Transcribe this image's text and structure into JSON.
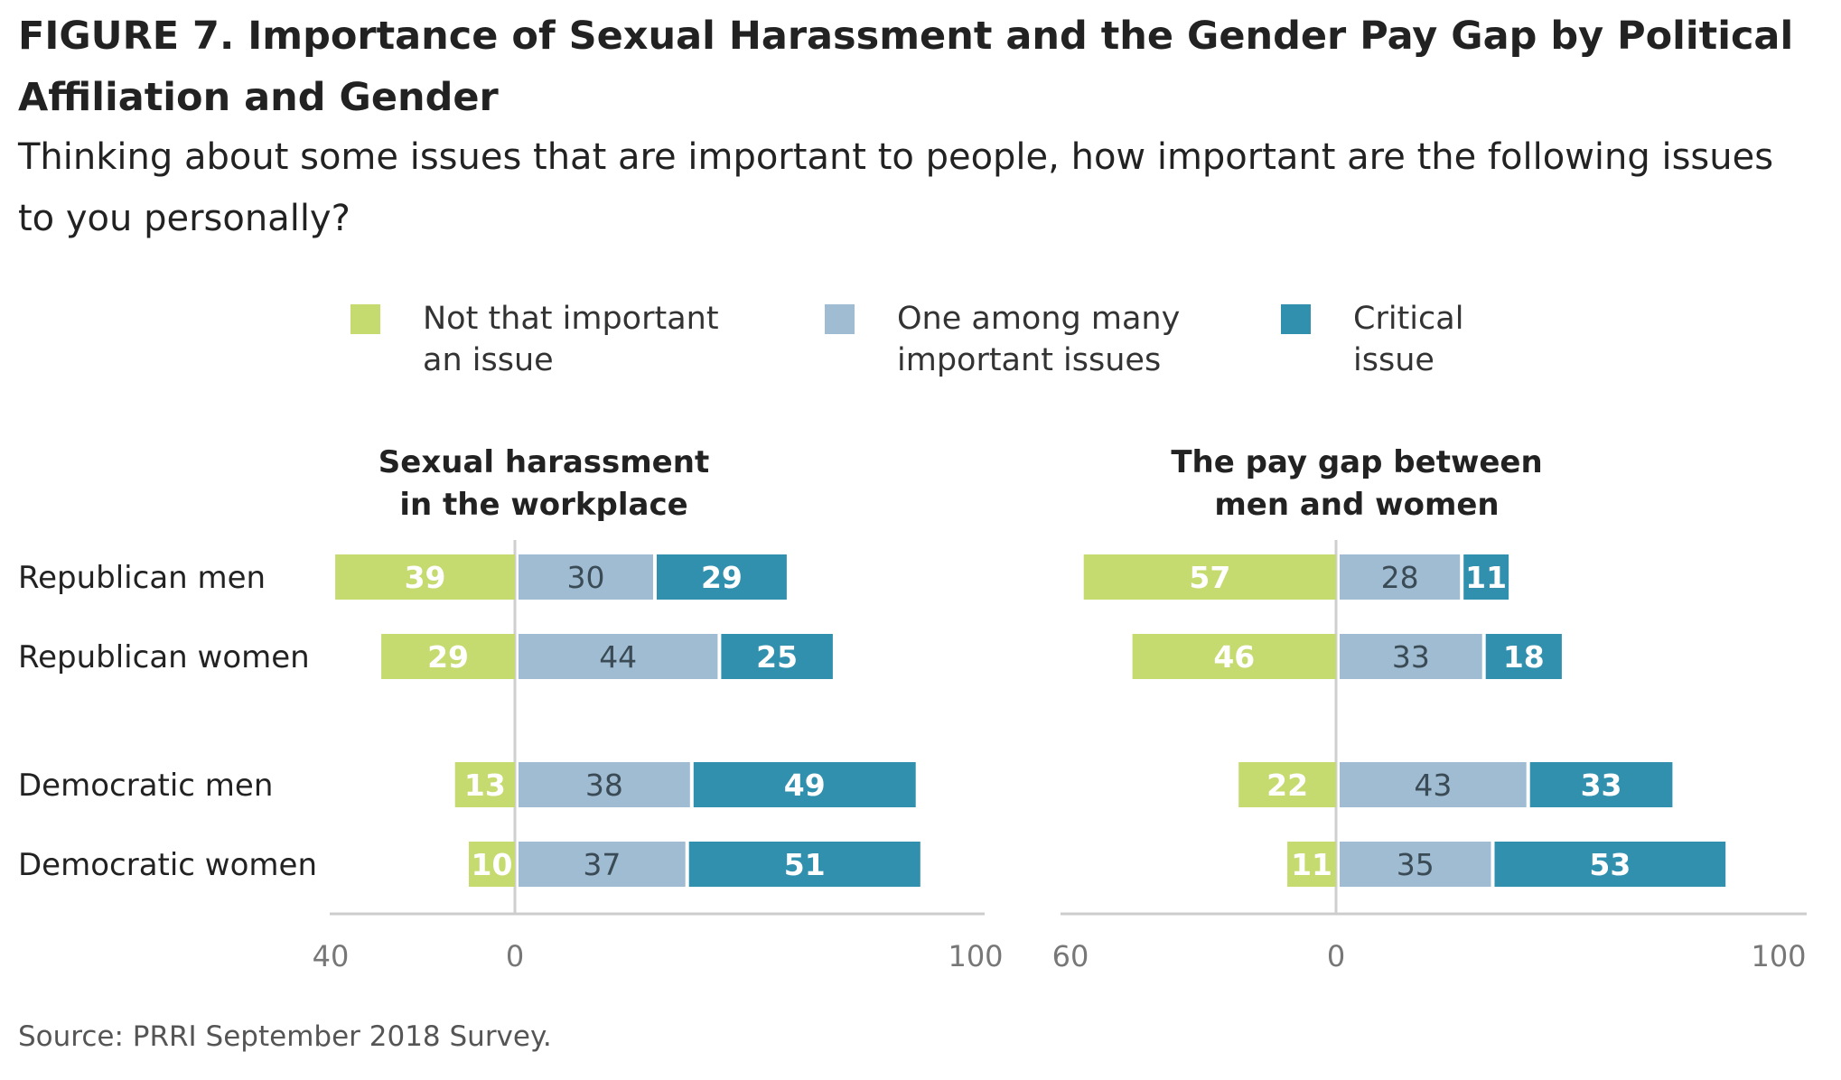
{
  "title": "FIGURE 7.  Importance of Sexual Harassment and the Gender Pay Gap by Political Affiliation and Gender",
  "subtitle": "Thinking about some issues that are important to people, how important are the following issues to you personally?",
  "legend": [
    {
      "label": "Not that important\nan issue",
      "color": "#c5da6f"
    },
    {
      "label": "One among many\nimportant issues",
      "color": "#9fbcd2"
    },
    {
      "label": "Critical\nissue",
      "color": "#3190ae"
    }
  ],
  "source": "Source: PRRI September 2018 Survey.",
  "chart_data": [
    {
      "type": "bar",
      "orientation": "diverging-horizontal-stacked",
      "title": "Sexual harassment\nin the workplace",
      "categories": [
        "Republican men",
        "Republican women",
        "Democratic men",
        "Democratic women"
      ],
      "series": [
        {
          "name": "Not that important an issue",
          "values": [
            39,
            29,
            13,
            10
          ],
          "color": "#c5da6f"
        },
        {
          "name": "One among many important issues",
          "values": [
            30,
            44,
            38,
            37
          ],
          "color": "#9fbcd2"
        },
        {
          "name": "Critical issue",
          "values": [
            29,
            25,
            49,
            51
          ],
          "color": "#3190ae"
        }
      ],
      "xlim": [
        -40,
        100
      ],
      "ticks": [
        {
          "value": -40,
          "label": "40"
        },
        {
          "value": 0,
          "label": "0"
        },
        {
          "value": 100,
          "label": "100"
        }
      ]
    },
    {
      "type": "bar",
      "orientation": "diverging-horizontal-stacked",
      "title": "The pay gap between\nmen and women",
      "categories": [
        "Republican men",
        "Republican women",
        "Democratic men",
        "Democratic women"
      ],
      "series": [
        {
          "name": "Not that important an issue",
          "values": [
            57,
            46,
            22,
            11
          ],
          "color": "#c5da6f"
        },
        {
          "name": "One among many important issues",
          "values": [
            28,
            33,
            43,
            35
          ],
          "color": "#9fbcd2"
        },
        {
          "name": "Critical issue",
          "values": [
            11,
            18,
            33,
            53
          ],
          "color": "#3190ae"
        }
      ],
      "xlim": [
        -60,
        100
      ],
      "ticks": [
        {
          "value": -60,
          "label": "60"
        },
        {
          "value": 0,
          "label": "0"
        },
        {
          "value": 100,
          "label": "100"
        }
      ]
    }
  ]
}
